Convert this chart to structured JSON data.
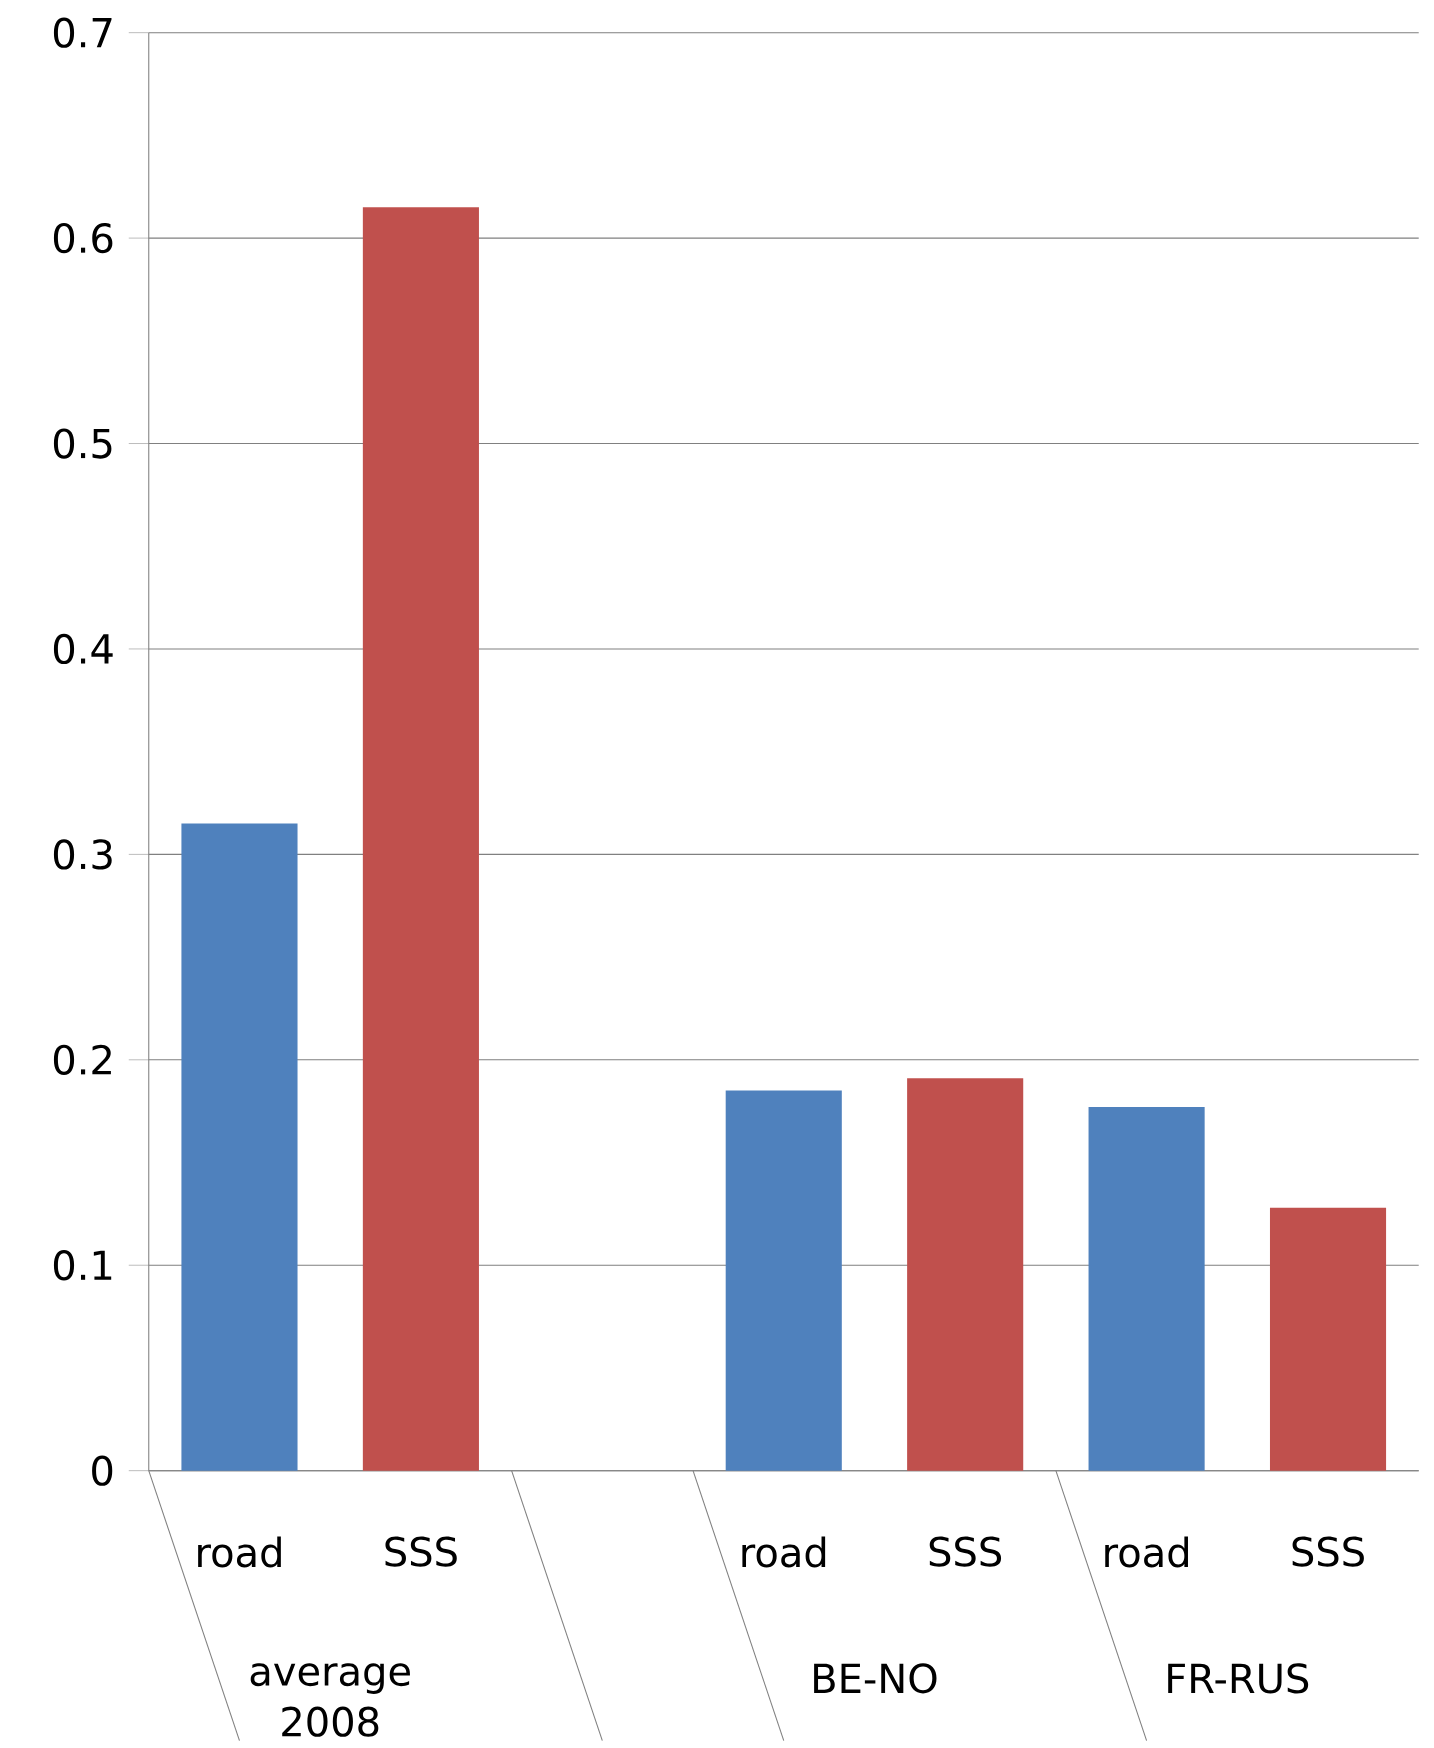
{
  "chart_data": {
    "type": "bar",
    "categories": [
      "road",
      "SSS",
      null,
      "road",
      "SSS",
      "road",
      "SSS"
    ],
    "values": [
      0.315,
      0.615,
      null,
      0.185,
      0.191,
      0.177,
      0.128
    ],
    "colors": [
      "#4f81bd",
      "#c0504d",
      null,
      "#4f81bd",
      "#c0504d",
      "#4f81bd",
      "#c0504d"
    ],
    "ylim": [
      0,
      0.7
    ],
    "yticks": [
      0,
      0.1,
      0.2,
      0.3,
      0.4,
      0.5,
      0.6,
      0.7
    ],
    "grid": "y",
    "annotations": [
      "average 2008",
      "BE-NO",
      "FR-RUS"
    ]
  }
}
